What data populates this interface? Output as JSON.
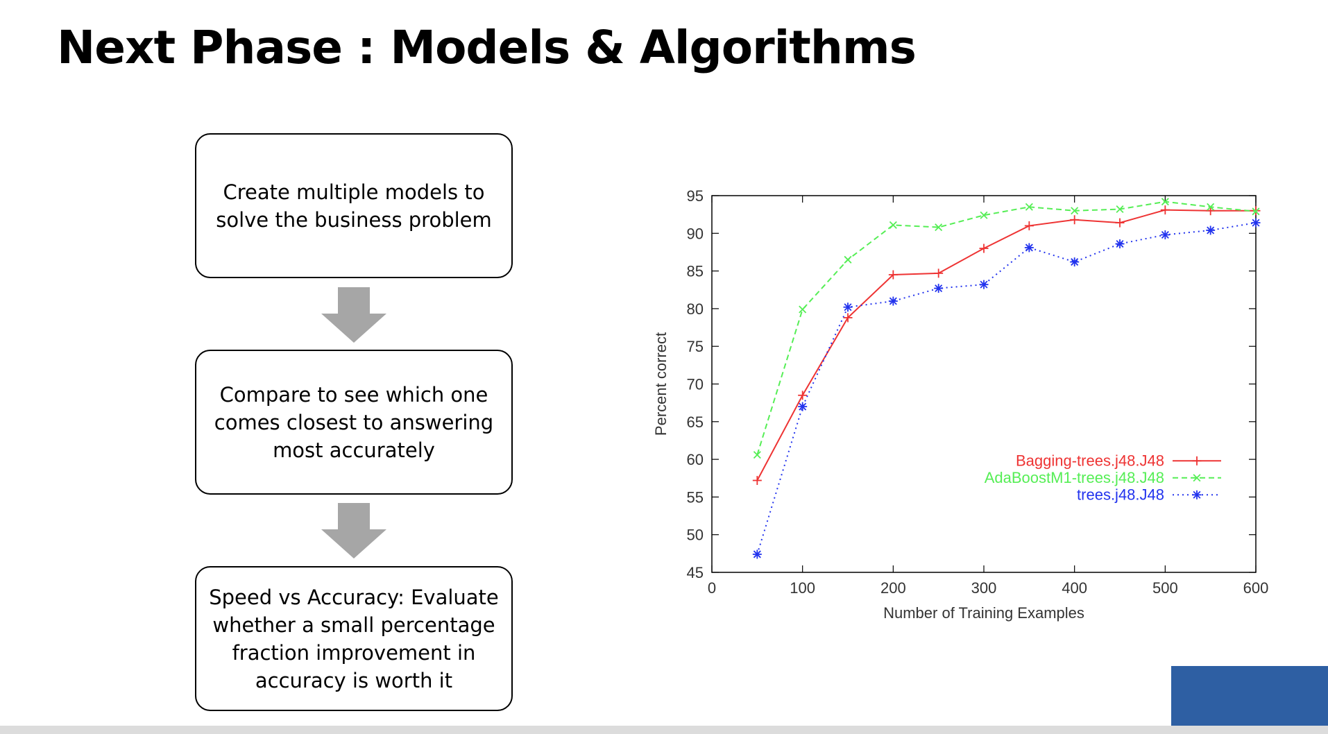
{
  "slide": {
    "title": "Next Phase : Models & Algorithms"
  },
  "flow": {
    "steps": [
      "Create multiple models to solve the business problem",
      "Compare to see which one comes closest to answering most accurately",
      "Speed vs Accuracy: Evaluate whether a small percentage fraction improvement in accuracy is worth it"
    ],
    "arrow_color": "#a6a6a6"
  },
  "chart_data": {
    "type": "line",
    "title": "",
    "xlabel": "Number of Training Examples",
    "ylabel": "Percent correct",
    "xlim": [
      0,
      600
    ],
    "ylim": [
      45,
      95
    ],
    "xticks": [
      0,
      100,
      200,
      300,
      400,
      500,
      600
    ],
    "yticks": [
      45,
      50,
      55,
      60,
      65,
      70,
      75,
      80,
      85,
      90,
      95
    ],
    "x": [
      50,
      100,
      150,
      200,
      250,
      300,
      350,
      400,
      450,
      500,
      550,
      600
    ],
    "grid": false,
    "legend_position": "lower-right",
    "series": [
      {
        "name": "Bagging-trees.j48.J48",
        "color": "#ee3333",
        "line_style": "solid",
        "marker": "plus",
        "values": [
          57.2,
          68.5,
          78.8,
          84.5,
          84.7,
          88.0,
          91.0,
          91.8,
          91.4,
          93.1,
          93.0,
          93.0
        ]
      },
      {
        "name": "AdaBoostM1-trees.j48.J48",
        "color": "#55ee55",
        "line_style": "dashed",
        "marker": "cross",
        "values": [
          60.6,
          79.9,
          86.5,
          91.1,
          90.8,
          92.4,
          93.5,
          93.0,
          93.2,
          94.2,
          93.5,
          92.9
        ]
      },
      {
        "name": "trees.j48.J48",
        "color": "#2233ee",
        "line_style": "dotted",
        "marker": "star",
        "values": [
          47.4,
          67.0,
          80.2,
          81.0,
          82.7,
          83.2,
          88.1,
          86.2,
          88.6,
          89.8,
          90.4,
          91.4
        ]
      }
    ]
  },
  "decor": {
    "corner_color": "#2e5fa3"
  }
}
